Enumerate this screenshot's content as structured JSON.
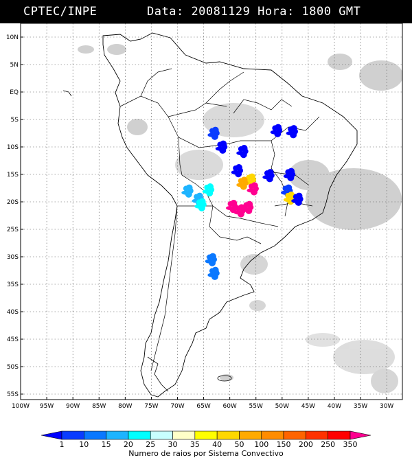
{
  "header": {
    "org": "CPTEC/INPE",
    "date_label": "Data:",
    "date": "20081129",
    "hour_label": "Hora:",
    "hour": "1800 GMT"
  },
  "map": {
    "lat_labels": [
      "10N",
      "5N",
      "EQ",
      "5S",
      "10S",
      "15S",
      "20S",
      "25S",
      "30S",
      "35S",
      "40S",
      "45S",
      "50S",
      "55S"
    ],
    "lat_values": [
      10,
      5,
      0,
      -5,
      -10,
      -15,
      -20,
      -25,
      -30,
      -35,
      -40,
      -45,
      -50,
      -55
    ],
    "lon_labels": [
      "100W",
      "95W",
      "90W",
      "85W",
      "80W",
      "75W",
      "70W",
      "65W",
      "60W",
      "55W",
      "50W",
      "45W",
      "40W",
      "35W",
      "30W"
    ],
    "lon_values": [
      -100,
      -95,
      -90,
      -85,
      -80,
      -75,
      -70,
      -65,
      -60,
      -55,
      -50,
      -45,
      -40,
      -35,
      -30
    ],
    "extent": {
      "lon_min": -100,
      "lon_max": -27,
      "lat_min": -56,
      "lat_max": 12.5
    }
  },
  "colorbar": {
    "labels": [
      "1",
      "10",
      "15",
      "20",
      "25",
      "30",
      "35",
      "40",
      "50",
      "100",
      "150",
      "200",
      "250",
      "350"
    ],
    "colors": [
      "#0000ff",
      "#0a3cff",
      "#0a78ff",
      "#1eb4ff",
      "#00ffff",
      "#c8ffff",
      "#ffffc8",
      "#ffff00",
      "#ffd700",
      "#ffaa00",
      "#ff8c00",
      "#ff6400",
      "#ff3200",
      "#ff0000",
      "#ff0090"
    ],
    "title": "Numero de raios por Sistema Convectivo"
  },
  "cells": [
    {
      "lon": -63.0,
      "lat": -7.5,
      "color": "#0a3cff"
    },
    {
      "lon": -61.5,
      "lat": -10.0,
      "color": "#0000ff"
    },
    {
      "lon": -57.5,
      "lat": -10.8,
      "color": "#0000ff"
    },
    {
      "lon": -51.0,
      "lat": -7.0,
      "color": "#0000ff"
    },
    {
      "lon": -48.0,
      "lat": -7.2,
      "color": "#0000ff"
    },
    {
      "lon": -58.5,
      "lat": -14.3,
      "color": "#0000ff"
    },
    {
      "lon": -52.5,
      "lat": -15.2,
      "color": "#0000ff"
    },
    {
      "lon": -48.5,
      "lat": -15.0,
      "color": "#0000ff"
    },
    {
      "lon": -56.0,
      "lat": -16.0,
      "color": "#ffd700"
    },
    {
      "lon": -57.5,
      "lat": -16.6,
      "color": "#ffaa00"
    },
    {
      "lon": -55.5,
      "lat": -17.6,
      "color": "#ff0090"
    },
    {
      "lon": -49.0,
      "lat": -18.0,
      "color": "#0a3cff"
    },
    {
      "lon": -48.5,
      "lat": -19.3,
      "color": "#ffd700"
    },
    {
      "lon": -47.0,
      "lat": -19.5,
      "color": "#0000ff"
    },
    {
      "lon": -68.0,
      "lat": -18.0,
      "color": "#1eb4ff"
    },
    {
      "lon": -66.0,
      "lat": -19.5,
      "color": "#1eb4ff"
    },
    {
      "lon": -64.0,
      "lat": -17.8,
      "color": "#00ffff"
    },
    {
      "lon": -65.5,
      "lat": -20.5,
      "color": "#00ffff"
    },
    {
      "lon": -59.5,
      "lat": -20.8,
      "color": "#ff0090"
    },
    {
      "lon": -58.0,
      "lat": -21.6,
      "color": "#ff0090"
    },
    {
      "lon": -56.5,
      "lat": -21.0,
      "color": "#ff0090"
    },
    {
      "lon": -63.5,
      "lat": -30.5,
      "color": "#0a78ff"
    },
    {
      "lon": -63.0,
      "lat": -33.0,
      "color": "#0a78ff"
    }
  ]
}
